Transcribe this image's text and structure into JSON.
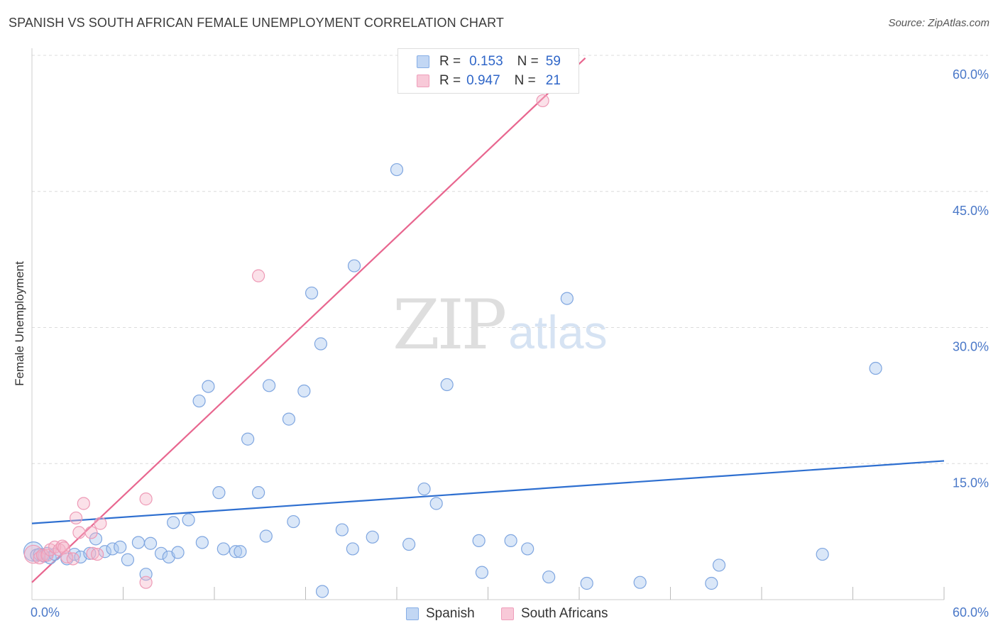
{
  "title": "SPANISH VS SOUTH AFRICAN FEMALE UNEMPLOYMENT CORRELATION CHART",
  "source": "Source: ZipAtlas.com",
  "watermark": {
    "zip": "ZIP",
    "atlas": "atlas"
  },
  "legend": {
    "r_label": "R =",
    "n_label": "N =",
    "rows": [
      {
        "r": "0.153",
        "n": "59"
      },
      {
        "r": "0.947",
        "n": "21"
      }
    ]
  },
  "bottom_legend": [
    "Spanish",
    "South Africans"
  ],
  "colors": {
    "spanish_fill": "rgba(173,202,240,0.45)",
    "spanish_stroke": "#7fa6e0",
    "spanish_line": "#2e6fd0",
    "sa_fill": "rgba(244,180,200,0.40)",
    "sa_stroke": "#ee9ab6",
    "sa_line": "#e8668f",
    "grid": "#dcdcdc",
    "axis_text": "#4a78c8"
  },
  "chart_data": {
    "type": "scatter",
    "title": "SPANISH VS SOUTH AFRICAN FEMALE UNEMPLOYMENT CORRELATION CHART",
    "xlabel": "",
    "ylabel": "Female Unemployment",
    "xlim": [
      0,
      60
    ],
    "ylim": [
      0,
      60
    ],
    "x_tick_labels": [
      "0.0%",
      "60.0%"
    ],
    "y_ticks": [
      15,
      30,
      45,
      60
    ],
    "y_tick_labels": [
      "15.0%",
      "30.0%",
      "45.0%",
      "60.0%"
    ],
    "series": [
      {
        "name": "Spanish",
        "r": 0.153,
        "n": 59,
        "trendline": {
          "x": [
            0,
            60
          ],
          "y": [
            8.4,
            15.3
          ]
        },
        "points": [
          [
            0.1,
            5.3,
            1.6
          ],
          [
            0.3,
            4.9,
            1
          ],
          [
            0.5,
            5.0,
            1
          ],
          [
            0.8,
            4.8,
            1
          ],
          [
            1.0,
            5.1,
            1
          ],
          [
            1.2,
            4.6,
            1
          ],
          [
            1.5,
            5.0,
            1
          ],
          [
            2.3,
            4.5,
            1
          ],
          [
            2.8,
            5.0,
            1
          ],
          [
            3.2,
            4.7,
            1
          ],
          [
            3.8,
            5.1,
            1
          ],
          [
            4.2,
            6.7,
            1
          ],
          [
            4.8,
            5.3,
            1
          ],
          [
            5.3,
            5.6,
            1
          ],
          [
            5.8,
            5.8,
            1
          ],
          [
            6.3,
            4.4,
            1
          ],
          [
            7.0,
            6.3,
            1
          ],
          [
            7.5,
            2.8,
            1
          ],
          [
            7.8,
            6.2,
            1
          ],
          [
            8.5,
            5.1,
            1
          ],
          [
            9.0,
            4.7,
            1
          ],
          [
            9.3,
            8.5,
            1
          ],
          [
            9.6,
            5.2,
            1
          ],
          [
            10.3,
            8.8,
            1
          ],
          [
            11.0,
            21.9,
            1
          ],
          [
            11.2,
            6.3,
            1
          ],
          [
            11.6,
            23.5,
            1
          ],
          [
            12.3,
            11.8,
            1
          ],
          [
            12.6,
            5.6,
            1
          ],
          [
            13.4,
            5.3,
            1
          ],
          [
            13.7,
            5.3,
            1
          ],
          [
            14.2,
            17.7,
            1
          ],
          [
            14.9,
            11.8,
            1
          ],
          [
            15.4,
            7.0,
            1
          ],
          [
            15.6,
            23.6,
            1
          ],
          [
            16.9,
            19.9,
            1
          ],
          [
            17.2,
            8.6,
            1
          ],
          [
            17.9,
            23.0,
            1
          ],
          [
            18.4,
            33.8,
            1
          ],
          [
            19.0,
            28.2,
            1
          ],
          [
            19.1,
            0.9,
            1
          ],
          [
            20.4,
            7.7,
            1
          ],
          [
            21.1,
            5.6,
            1
          ],
          [
            21.2,
            36.8,
            1
          ],
          [
            22.4,
            6.9,
            1
          ],
          [
            24.0,
            47.4,
            1
          ],
          [
            24.8,
            6.1,
            1
          ],
          [
            25.8,
            12.2,
            1
          ],
          [
            26.6,
            10.6,
            1
          ],
          [
            27.3,
            23.7,
            1
          ],
          [
            29.4,
            6.5,
            1
          ],
          [
            29.6,
            3.0,
            1
          ],
          [
            31.5,
            6.5,
            1
          ],
          [
            32.6,
            5.6,
            1
          ],
          [
            34.0,
            2.5,
            1
          ],
          [
            35.2,
            33.2,
            1
          ],
          [
            36.5,
            1.8,
            1
          ],
          [
            40.0,
            1.9,
            1
          ],
          [
            44.7,
            1.8,
            1
          ],
          [
            45.2,
            3.8,
            1
          ],
          [
            52.0,
            5.0,
            1
          ],
          [
            55.5,
            25.5,
            1
          ]
        ]
      },
      {
        "name": "South Africans",
        "r": 0.947,
        "n": 21,
        "trendline": {
          "x": [
            0,
            36.4
          ],
          "y": [
            1.9,
            59.7
          ]
        },
        "points": [
          [
            0.1,
            5.0,
            1.5
          ],
          [
            0.5,
            4.6,
            1
          ],
          [
            0.7,
            4.9,
            1
          ],
          [
            1.0,
            4.9,
            1
          ],
          [
            1.2,
            5.5,
            1
          ],
          [
            1.5,
            5.8,
            1
          ],
          [
            1.8,
            5.5,
            1
          ],
          [
            2.0,
            5.9,
            1
          ],
          [
            2.1,
            5.7,
            1
          ],
          [
            2.3,
            4.7,
            1
          ],
          [
            2.7,
            4.5,
            1
          ],
          [
            2.9,
            9.0,
            1
          ],
          [
            3.1,
            7.4,
            1
          ],
          [
            3.4,
            10.6,
            1
          ],
          [
            3.9,
            7.4,
            1
          ],
          [
            4.0,
            5.1,
            1
          ],
          [
            4.3,
            5.0,
            1
          ],
          [
            4.5,
            8.4,
            1
          ],
          [
            7.5,
            11.1,
            1
          ],
          [
            7.5,
            1.9,
            1
          ],
          [
            14.9,
            35.7,
            1
          ],
          [
            33.6,
            55.0,
            1
          ]
        ]
      }
    ]
  }
}
